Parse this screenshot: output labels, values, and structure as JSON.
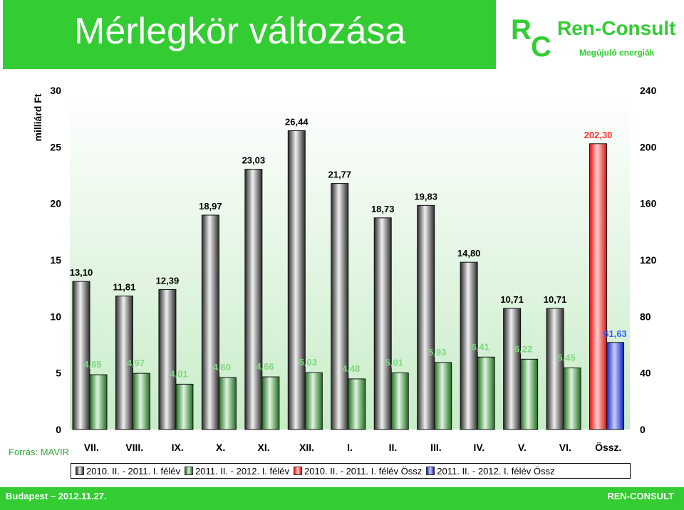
{
  "header": {
    "title": "Mérlegkör változása"
  },
  "logo": {
    "letter_r": "R",
    "letter_c": "C",
    "name": "Ren-Consult",
    "tagline": "Megújuló energiák"
  },
  "source": "Forrás: MAVIR",
  "footer": {
    "left": "Budapest – 2012.11.27.",
    "right": "REN-CONSULT"
  },
  "colors": {
    "header_green": "#33cc33",
    "series_a": "#555555",
    "series_b": "#2e8b2e",
    "total_a": "#ff2a2a",
    "total_b": "#2a3de0"
  },
  "chart_data": {
    "type": "bar",
    "ylabel": "milliárd Ft",
    "ylim": [
      0,
      30
    ],
    "y2lim": [
      0,
      240
    ],
    "yticks": [
      0,
      5,
      10,
      15,
      20,
      25,
      30
    ],
    "y2ticks": [
      0,
      40,
      80,
      120,
      160,
      200,
      240
    ],
    "grid": false,
    "legend_position": "bottom",
    "categories": [
      "VII.",
      "VIII.",
      "IX.",
      "X.",
      "XI.",
      "XII.",
      "I.",
      "II.",
      "III.",
      "IV.",
      "V.",
      "VI.",
      "Össz."
    ],
    "series": [
      {
        "name": "2010. II. - 2011. I. félév",
        "axis": "left",
        "values": [
          13.1,
          11.81,
          12.39,
          18.97,
          23.03,
          26.44,
          21.77,
          18.73,
          19.83,
          14.8,
          10.71,
          10.71,
          null
        ],
        "labels": [
          "13,10",
          "11,81",
          "12,39",
          "18,97",
          "23,03",
          "26,44",
          "21,77",
          "18,73",
          "19,83",
          "14,80",
          "10,71",
          "10,71",
          ""
        ]
      },
      {
        "name": "2011. II. - 2012. I. félév",
        "axis": "left",
        "values": [
          4.85,
          4.97,
          4.01,
          4.6,
          4.66,
          5.03,
          4.48,
          5.01,
          5.93,
          6.41,
          6.22,
          5.45,
          null
        ],
        "labels": [
          "4,85",
          "4,97",
          "4,01",
          "4,60",
          "4,66",
          "5,03",
          "4,48",
          "5,01",
          "5,93",
          "6,41",
          "6,22",
          "5,45",
          ""
        ]
      },
      {
        "name": "2010. II. - 2011. I. félév Össz",
        "axis": "right",
        "values": [
          null,
          null,
          null,
          null,
          null,
          null,
          null,
          null,
          null,
          null,
          null,
          null,
          202.3
        ],
        "labels": [
          "",
          "",
          "",
          "",
          "",
          "",
          "",
          "",
          "",
          "",
          "",
          "",
          "202,30"
        ]
      },
      {
        "name": "2011. II. - 2012. I. félév Össz",
        "axis": "right",
        "values": [
          null,
          null,
          null,
          null,
          null,
          null,
          null,
          null,
          null,
          null,
          null,
          null,
          61.63
        ],
        "labels": [
          "",
          "",
          "",
          "",
          "",
          "",
          "",
          "",
          "",
          "",
          "",
          "",
          "61,63"
        ]
      }
    ]
  }
}
